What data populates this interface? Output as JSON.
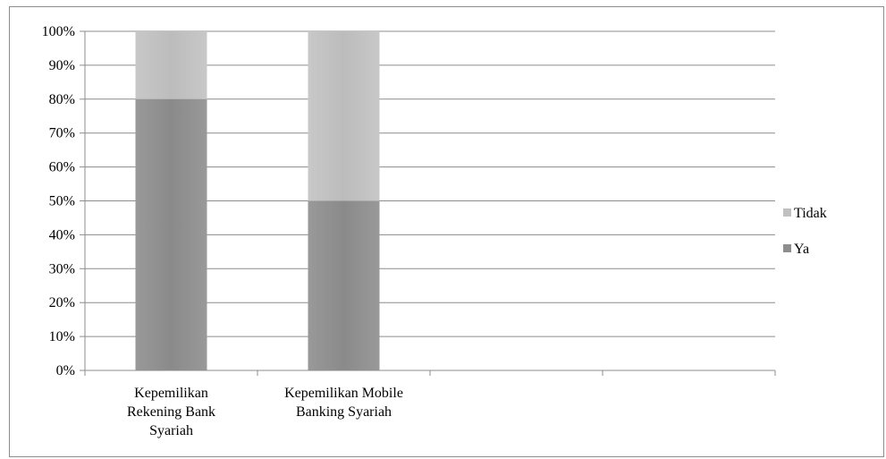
{
  "chart_data": {
    "type": "bar",
    "stacked": true,
    "percent": true,
    "categories": [
      [
        "Kepemilikan",
        "Rekening Bank",
        "Syariah"
      ],
      [
        "Kepemilikan Mobile",
        "Banking Syariah"
      ],
      [],
      []
    ],
    "series": [
      {
        "name": "Ya",
        "values": [
          80,
          50,
          null,
          null
        ],
        "color": "#8e8e8e"
      },
      {
        "name": "Tidak",
        "values": [
          20,
          50,
          null,
          null
        ],
        "color": "#c0c0c0"
      }
    ],
    "y_ticks": [
      "0%",
      "10%",
      "20%",
      "30%",
      "40%",
      "50%",
      "60%",
      "70%",
      "80%",
      "90%",
      "100%"
    ],
    "ylim": [
      0,
      100
    ],
    "grid": true,
    "legend_position": "right",
    "legend_order": [
      "Tidak",
      "Ya"
    ],
    "title": "",
    "xlabel": "",
    "ylabel": ""
  }
}
